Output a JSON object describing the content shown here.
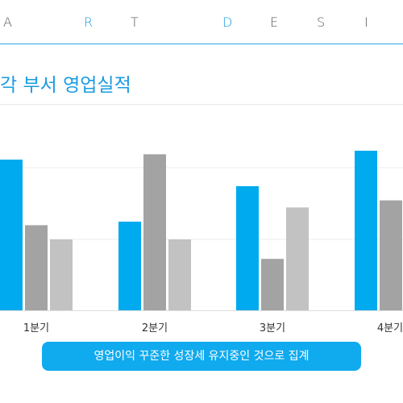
{
  "header": {
    "letters": [
      "A",
      "R",
      "T",
      "D",
      "E",
      "S",
      "I"
    ]
  },
  "colors": {
    "accent": "#1a9be0",
    "series_1": "#00aaee",
    "series_2": "#a3a3a3",
    "series_3": "#c2c2c2"
  },
  "footer": {
    "text": "영업이익 꾸준한 성장세 유지중인 것으로 집계"
  },
  "chart_data": {
    "type": "bar",
    "title": "각 부서 영업실적",
    "categories": [
      "1분기",
      "2분기",
      "3분기",
      "4분기"
    ],
    "series": [
      {
        "values": [
          85,
          50,
          70,
          90
        ]
      },
      {
        "values": [
          48,
          88,
          29,
          62
        ]
      },
      {
        "values": [
          40,
          40,
          58,
          0
        ]
      }
    ],
    "ylim": [
      0,
      100
    ],
    "grid": true,
    "legend": "none"
  }
}
